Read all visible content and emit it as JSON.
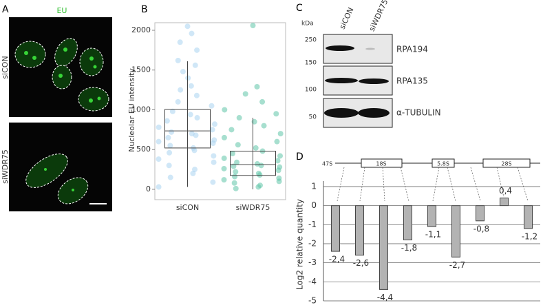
{
  "panels": {
    "a": {
      "letter": "A",
      "stain": "EU",
      "rows": [
        "siCON",
        "siWDR75"
      ]
    },
    "b": {
      "letter": "B"
    },
    "c": {
      "letter": "C",
      "unit": "kDa",
      "markers": [
        "250",
        "150",
        "100",
        "50"
      ],
      "lanes": [
        "siCON",
        "siWDR75"
      ],
      "proteins": [
        "RPA194",
        "RPA135",
        "α-TUBULIN"
      ]
    },
    "d": {
      "letter": "D",
      "precursor": "47S",
      "regions": [
        "18S",
        "5.8S",
        "28S"
      ]
    }
  },
  "chart_data": [
    {
      "type": "box",
      "ylabel": "Nucleolar EU intensity",
      "categories": [
        "siCON",
        "siWDR75"
      ],
      "boxes": [
        {
          "color": "#a9d4f0",
          "whislo": 30,
          "q1": 520,
          "med": 735,
          "q3": 1005,
          "whishi": 1610,
          "points": [
            2050,
            1960,
            1850,
            1750,
            1620,
            1560,
            1480,
            1400,
            1300,
            1250,
            1180,
            1100,
            1050,
            980,
            940,
            900,
            860,
            820,
            780,
            750,
            720,
            700,
            680,
            650,
            620,
            600,
            580,
            550,
            520,
            490,
            460,
            420,
            380,
            340,
            300,
            250,
            200,
            150,
            90,
            30
          ]
        },
        {
          "color": "#5fc4a8",
          "whislo": 0,
          "q1": 175,
          "med": 310,
          "q3": 480,
          "whishi": 900,
          "points": [
            2060,
            1290,
            1200,
            1100,
            1000,
            950,
            900,
            850,
            800,
            750,
            700,
            650,
            600,
            560,
            520,
            480,
            450,
            420,
            390,
            360,
            340,
            320,
            300,
            290,
            280,
            260,
            240,
            220,
            200,
            180,
            160,
            140,
            120,
            100,
            80,
            50,
            30,
            10
          ]
        }
      ],
      "ylim": [
        -130,
        2095
      ],
      "yticks": [
        0,
        500,
        1000,
        1500,
        2000
      ]
    },
    {
      "type": "bar",
      "ylabel": "Log2 relative quantity",
      "color": "#b3b3b3",
      "values": [
        -2.4,
        -2.6,
        -4.4,
        -1.8,
        -1.1,
        -2.7,
        -0.8,
        0.4,
        -1.2
      ],
      "value_labels": [
        "-2,4",
        "-2,6",
        "-4,4",
        "-1,8",
        "-1,1",
        "-2,7",
        "-0,8",
        "0,4",
        "-1,2"
      ],
      "ylim": [
        -5,
        1
      ],
      "yticks": [
        1,
        0,
        -1,
        -2,
        -3,
        -4,
        -5
      ],
      "grid": true
    }
  ]
}
